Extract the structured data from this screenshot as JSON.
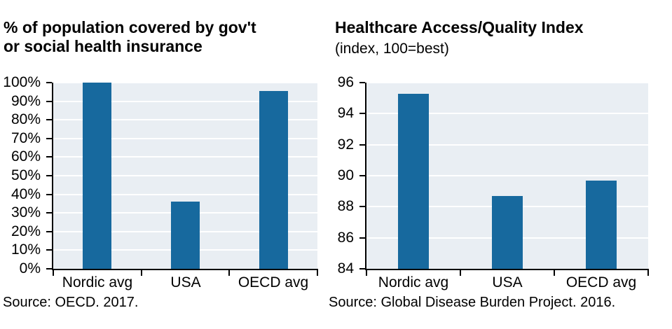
{
  "page": {
    "background": "#ffffff"
  },
  "colors": {
    "bar_fill": "#17699e",
    "plot_background": "#e9eef3",
    "gridline": "#ffffff",
    "axis_line": "#000000",
    "text": "#000000"
  },
  "chart_data": [
    {
      "type": "bar",
      "title": "% of population covered by gov't\nor social health insurance",
      "subtitle": "",
      "categories": [
        "Nordic avg",
        "USA",
        "OECD avg"
      ],
      "values": [
        100,
        36,
        95.5
      ],
      "value_unit": "%",
      "ylim": [
        0,
        100
      ],
      "ytick_values": [
        0,
        10,
        20,
        30,
        40,
        50,
        60,
        70,
        80,
        90,
        100
      ],
      "ytick_labels": [
        "0%",
        "10%",
        "20%",
        "30%",
        "40%",
        "50%",
        "60%",
        "70%",
        "80%",
        "90%",
        "100%"
      ],
      "grid": "horizontal white gridlines on shaded plot area",
      "legend": "none",
      "source": "Source: OECD. 2017."
    },
    {
      "type": "bar",
      "title": "Healthcare Access/Quality Index",
      "subtitle": "(index, 100=best)",
      "categories": [
        "Nordic avg",
        "USA",
        "OECD avg"
      ],
      "values": [
        95.3,
        88.7,
        89.7
      ],
      "value_unit": "index points",
      "ylim": [
        84,
        96
      ],
      "ytick_values": [
        84,
        86,
        88,
        90,
        92,
        94,
        96
      ],
      "ytick_labels": [
        "84",
        "86",
        "88",
        "90",
        "92",
        "94",
        "96"
      ],
      "grid": "horizontal white gridlines on shaded plot area",
      "legend": "none",
      "source": "Source: Global Disease Burden Project. 2016."
    }
  ]
}
